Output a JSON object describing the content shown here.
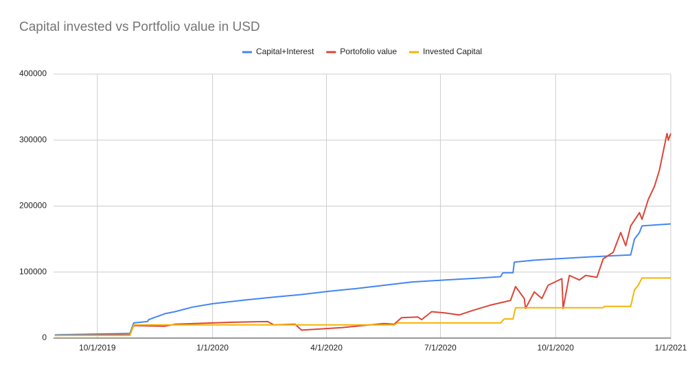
{
  "chart_data": {
    "type": "line",
    "title": "Capital invested vs Portfolio value in USD",
    "legend": "top",
    "grid": true,
    "xlim": [
      "2019-08-27",
      "2021-01-01"
    ],
    "xticks": [
      {
        "value": "2019-10-01",
        "label": "10/1/2019"
      },
      {
        "value": "2020-01-01",
        "label": "1/1/2020"
      },
      {
        "value": "2020-04-01",
        "label": "4/1/2020"
      },
      {
        "value": "2020-07-01",
        "label": "7/1/2020"
      },
      {
        "value": "2020-10-01",
        "label": "10/1/2020"
      },
      {
        "value": "2021-01-01",
        "label": "1/1/2021"
      }
    ],
    "ylim": [
      0,
      400000
    ],
    "yticks": [
      0,
      100000,
      200000,
      300000,
      400000
    ],
    "series": [
      {
        "name": "Capital+Interest",
        "color": "#4285f4",
        "x": [
          "2019-08-28",
          "2019-10-27",
          "2019-10-30",
          "2019-11-10",
          "2019-11-11",
          "2019-11-24",
          "2019-12-02",
          "2019-12-16",
          "2020-01-01",
          "2020-01-28",
          "2020-02-19",
          "2020-03-12",
          "2020-04-03",
          "2020-04-25",
          "2020-05-17",
          "2020-06-08",
          "2020-07-05",
          "2020-08-02",
          "2020-08-18",
          "2020-08-20",
          "2020-08-28",
          "2020-08-29",
          "2020-09-14",
          "2020-10-01",
          "2020-10-28",
          "2020-11-30",
          "2020-12-03",
          "2020-12-07",
          "2020-12-09",
          "2021-01-01"
        ],
        "values": [
          5000,
          7000,
          23000,
          25000,
          28000,
          37000,
          40000,
          47000,
          52000,
          58000,
          62000,
          66000,
          71000,
          75000,
          80000,
          85000,
          88000,
          91000,
          93000,
          99000,
          99000,
          115000,
          118000,
          120000,
          123000,
          126000,
          150000,
          160000,
          170000,
          173000
        ]
      },
      {
        "name": "Portofolio value",
        "color": "#db4437",
        "x": [
          "2019-08-28",
          "2019-10-27",
          "2019-10-30",
          "2019-11-24",
          "2019-12-02",
          "2020-01-01",
          "2020-01-17",
          "2020-02-14",
          "2020-02-19",
          "2020-03-07",
          "2020-03-12",
          "2020-03-29",
          "2020-04-14",
          "2020-04-30",
          "2020-05-17",
          "2020-05-25",
          "2020-05-31",
          "2020-06-13",
          "2020-06-16",
          "2020-06-24",
          "2020-07-05",
          "2020-07-16",
          "2020-07-27",
          "2020-08-10",
          "2020-08-26",
          "2020-08-30",
          "2020-09-06",
          "2020-09-07",
          "2020-09-14",
          "2020-09-20",
          "2020-09-25",
          "2020-10-06",
          "2020-10-07",
          "2020-10-12",
          "2020-10-20",
          "2020-10-25",
          "2020-11-03",
          "2020-11-08",
          "2020-11-16",
          "2020-11-22",
          "2020-11-26",
          "2020-11-30",
          "2020-12-07",
          "2020-12-09",
          "2020-12-14",
          "2020-12-19",
          "2020-12-23",
          "2020-12-29",
          "2020-12-30",
          "2021-01-01"
        ],
        "values": [
          4000,
          5000,
          19000,
          18000,
          21000,
          23000,
          24000,
          25000,
          20000,
          21000,
          12000,
          14000,
          16000,
          19000,
          22000,
          21000,
          31000,
          32000,
          28000,
          40000,
          38000,
          35000,
          42000,
          50000,
          57000,
          78000,
          60000,
          45000,
          70000,
          60000,
          80000,
          90000,
          45000,
          95000,
          88000,
          95000,
          92000,
          120000,
          130000,
          160000,
          140000,
          170000,
          190000,
          180000,
          210000,
          230000,
          255000,
          310000,
          300000,
          310000
        ]
      },
      {
        "name": "Invested Capital",
        "color": "#f4b400",
        "x": [
          "2019-08-28",
          "2019-10-27",
          "2019-10-30",
          "2020-05-25",
          "2020-05-28",
          "2020-08-18",
          "2020-08-21",
          "2020-08-28",
          "2020-08-30",
          "2020-11-08",
          "2020-11-09",
          "2020-11-30",
          "2020-12-03",
          "2020-12-06",
          "2020-12-09",
          "2021-01-01"
        ],
        "values": [
          4000,
          4000,
          20000,
          20000,
          23000,
          23000,
          29000,
          29000,
          46000,
          46000,
          48000,
          48000,
          73000,
          80000,
          91000,
          91000
        ]
      }
    ]
  }
}
